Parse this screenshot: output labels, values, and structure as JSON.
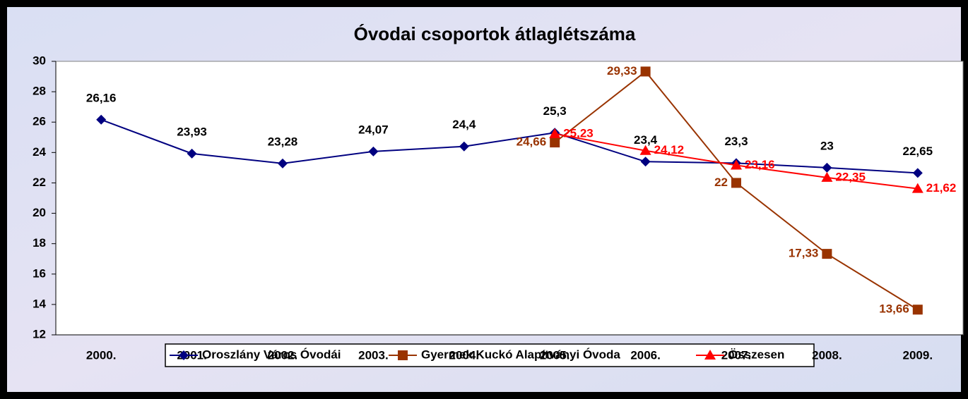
{
  "chart_data": {
    "type": "line",
    "title": "Óvodai csoportok átlaglétszáma",
    "categories": [
      "2000.",
      "2001.",
      "2002.",
      "2003.",
      "2004.",
      "2005.",
      "2006.",
      "2007.",
      "2008.",
      "2009."
    ],
    "series": [
      {
        "name": "Oroszlány Város Óvodái",
        "color": "#000080",
        "label_color": "#000000",
        "marker": "diamond",
        "values": [
          26.16,
          23.93,
          23.28,
          24.07,
          24.4,
          25.3,
          23.4,
          23.3,
          23,
          22.65
        ],
        "value_labels": [
          "26,16",
          "23,93",
          "23,28",
          "24,07",
          "24,4",
          "25,3",
          "23,4",
          "23,3",
          "23",
          "22,65"
        ]
      },
      {
        "name": "Gyermek Kuckó Alapítványi Óvoda",
        "color": "#993300",
        "label_color": "#993300",
        "marker": "square",
        "values": [
          null,
          null,
          null,
          null,
          null,
          24.66,
          29.33,
          22,
          17.33,
          13.66
        ],
        "value_labels": [
          null,
          null,
          null,
          null,
          null,
          "24,66",
          "29,33",
          "22",
          "17,33",
          "13,66"
        ]
      },
      {
        "name": "Összesen",
        "color": "#ff0000",
        "label_color": "#ff0000",
        "marker": "triangle",
        "values": [
          null,
          null,
          null,
          null,
          null,
          25.23,
          24.12,
          23.16,
          22.35,
          21.62
        ],
        "value_labels": [
          null,
          null,
          null,
          null,
          null,
          "25,23",
          "24,12",
          "23,16",
          "22,35",
          "21,62"
        ]
      }
    ],
    "ylim": [
      12,
      30
    ],
    "yticks": [
      12,
      14,
      16,
      18,
      20,
      22,
      24,
      26,
      28,
      30
    ],
    "grid": false,
    "legend": "bottom"
  }
}
